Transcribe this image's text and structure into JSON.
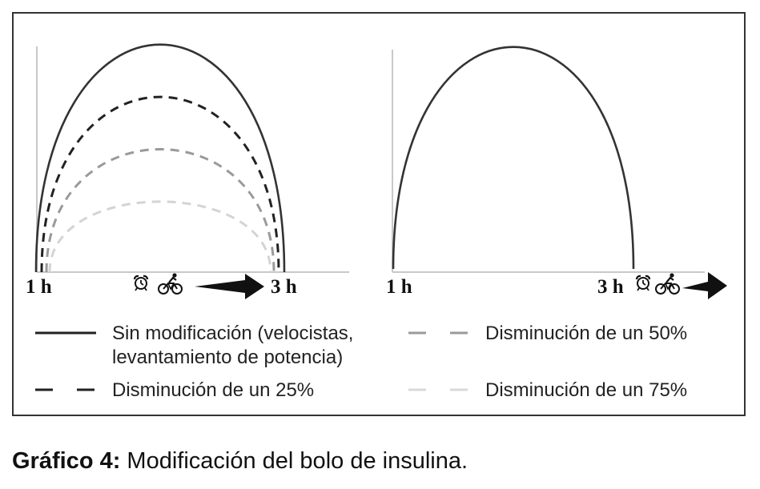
{
  "chart_data": [
    {
      "type": "line",
      "x_ticks": [
        "1 h",
        "3 h"
      ],
      "series": [
        {
          "name": "Sin modificación (velocistas, levantamiento de potencia)",
          "style": "solid",
          "color": "#333333",
          "peak": 1.0
        },
        {
          "name": "Disminución de un 25%",
          "style": "dashed",
          "color": "#222222",
          "peak": 0.77
        },
        {
          "name": "Disminución de un 50%",
          "style": "dashed",
          "color": "#9a9a9a",
          "peak": 0.54
        },
        {
          "name": "Disminución de un 75%",
          "style": "dashed",
          "color": "#d4d4d4",
          "peak": 0.31
        }
      ],
      "event_icons": [
        "alarm-clock-icon",
        "bicycle-icon",
        "arrow-icon"
      ]
    },
    {
      "type": "line",
      "x_ticks": [
        "1 h",
        "3 h"
      ],
      "series": [
        {
          "name": "Sin modificación (velocistas, levantamiento de potencia)",
          "style": "solid",
          "color": "#333333",
          "peak": 1.0
        }
      ],
      "event_icons": [
        "alarm-clock-icon",
        "bicycle-icon",
        "arrow-icon"
      ]
    }
  ],
  "legend": [
    {
      "line1": "Sin modificación (velocistas,",
      "line2": "levantamiento de potencia)",
      "style": "solid",
      "color": "#222222"
    },
    {
      "line1": "Disminución de un 50%",
      "line2": "",
      "style": "dashed",
      "color": "#9a9a9a"
    },
    {
      "line1": "Disminución de un 25%",
      "line2": "",
      "style": "dashed",
      "color": "#222222"
    },
    {
      "line1": "Disminución de un 75%",
      "line2": "",
      "style": "dashed",
      "color": "#d9d9d9"
    }
  ],
  "caption": {
    "label": "Gráfico 4:",
    "text": " Modificación del bolo de insulina."
  }
}
